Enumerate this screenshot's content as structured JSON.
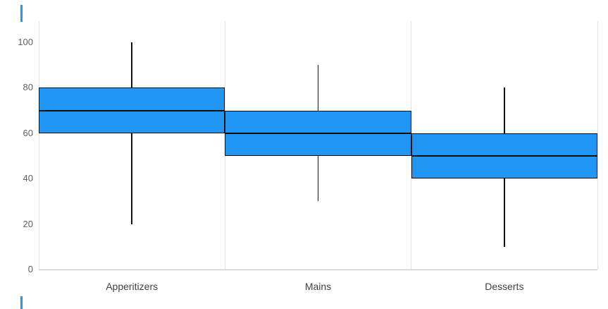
{
  "chart": {
    "box_fill": "#2196f3",
    "box_border": "#111111",
    "grid_color": "#e2e2e2",
    "axis_color": "#c6c6c6",
    "tick_label_color": "#616161",
    "category_label_color": "#424242",
    "accent_color": "#2196f3"
  },
  "chart_data": {
    "type": "box",
    "title": "",
    "xlabel": "",
    "ylabel": "",
    "categories": [
      "Apperitizers",
      "Mains",
      "Desserts"
    ],
    "series": [
      {
        "name": "Apperitizers",
        "whisker_low": 20,
        "q1": 60,
        "median": 70,
        "q3": 80,
        "whisker_high": 100
      },
      {
        "name": "Mains",
        "whisker_low": 30,
        "q1": 50,
        "median": 60,
        "q3": 70,
        "whisker_high": 90
      },
      {
        "name": "Desserts",
        "whisker_low": 10,
        "q1": 40,
        "median": 50,
        "q3": 60,
        "whisker_high": 80
      }
    ],
    "ylim": [
      0,
      100
    ],
    "yticks": [
      0,
      20,
      40,
      60,
      80,
      100
    ],
    "grid": "vertical-category-separators",
    "legend": "none"
  }
}
